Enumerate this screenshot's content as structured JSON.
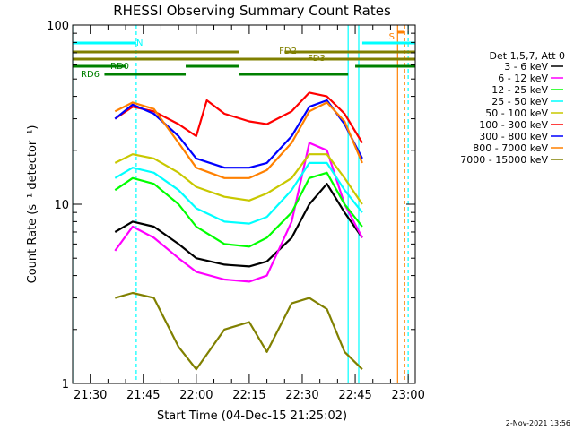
{
  "chart_data": {
    "type": "line",
    "title": "RHESSI Observing Summary Count Rates",
    "xlabel": "Start Time (04-Dec-15 21:25:02)",
    "ylabel": "Count Rate (s⁻¹ detector⁻¹)",
    "yscale": "log",
    "ylim": [
      1,
      100
    ],
    "xlim": [
      "21:25",
      "23:02"
    ],
    "x_ticks": [
      "21:30",
      "21:45",
      "22:00",
      "22:15",
      "22:30",
      "22:45",
      "23:00"
    ],
    "y_ticks": [
      "1",
      "10",
      "100"
    ],
    "grid": false,
    "legend_position": "right",
    "legend_title": "Det 1,5,7, Att 0",
    "footer_timestamp": "2-Nov-2021 13:56",
    "series": [
      {
        "name": "3 - 6 keV",
        "color": "#000000",
        "x": [
          "21:37",
          "21:42",
          "21:48",
          "21:55",
          "22:00",
          "22:08",
          "22:15",
          "22:20",
          "22:27",
          "22:32",
          "22:37",
          "22:42",
          "22:47"
        ],
        "y": [
          7.0,
          8.0,
          7.5,
          6.0,
          5.0,
          4.6,
          4.5,
          4.8,
          6.5,
          10.0,
          13.0,
          9.0,
          6.5
        ]
      },
      {
        "name": "6 - 12 keV",
        "color": "#ff00ff",
        "x": [
          "21:37",
          "21:42",
          "21:48",
          "21:55",
          "22:00",
          "22:08",
          "22:15",
          "22:20",
          "22:27",
          "22:32",
          "22:37",
          "22:42",
          "22:47"
        ],
        "y": [
          5.5,
          7.5,
          6.5,
          5.0,
          4.2,
          3.8,
          3.7,
          4.0,
          8.0,
          22.0,
          20.0,
          10.0,
          6.5
        ]
      },
      {
        "name": "12 - 25 keV",
        "color": "#00ff00",
        "x": [
          "21:37",
          "21:42",
          "21:48",
          "21:55",
          "22:00",
          "22:08",
          "22:15",
          "22:20",
          "22:27",
          "22:32",
          "22:37",
          "22:42",
          "22:47"
        ],
        "y": [
          12.0,
          14.0,
          13.0,
          10.0,
          7.5,
          6.0,
          5.8,
          6.5,
          9.0,
          14.0,
          15.0,
          10.0,
          7.5
        ]
      },
      {
        "name": "25 - 50 keV",
        "color": "#00ffff",
        "x": [
          "21:37",
          "21:42",
          "21:48",
          "21:55",
          "22:00",
          "22:08",
          "22:15",
          "22:20",
          "22:27",
          "22:32",
          "22:37",
          "22:42",
          "22:47"
        ],
        "y": [
          14.0,
          16.0,
          15.0,
          12.0,
          9.5,
          8.0,
          7.8,
          8.5,
          12.0,
          17.0,
          17.0,
          12.0,
          9.0
        ]
      },
      {
        "name": "50 - 100 keV",
        "color": "#c8c800",
        "x": [
          "21:37",
          "21:42",
          "21:48",
          "21:55",
          "22:00",
          "22:08",
          "22:15",
          "22:20",
          "22:27",
          "22:32",
          "22:37",
          "22:42",
          "22:47"
        ],
        "y": [
          17.0,
          19.0,
          18.0,
          15.0,
          12.5,
          11.0,
          10.5,
          11.5,
          14.0,
          19.0,
          19.0,
          14.0,
          10.0
        ]
      },
      {
        "name": "100 - 300 keV",
        "color": "#ff0000",
        "x": [
          "21:37",
          "21:42",
          "21:48",
          "21:55",
          "22:00",
          "22:03",
          "22:08",
          "22:15",
          "22:20",
          "22:27",
          "22:32",
          "22:37",
          "22:42",
          "22:47"
        ],
        "y": [
          30.0,
          35.0,
          33.0,
          28.0,
          24.0,
          38.0,
          32.0,
          29.0,
          28.0,
          33.0,
          42.0,
          40.0,
          32.0,
          22.0
        ]
      },
      {
        "name": "300 - 800 keV",
        "color": "#0000ff",
        "x": [
          "21:37",
          "21:42",
          "21:48",
          "21:55",
          "22:00",
          "22:08",
          "22:15",
          "22:20",
          "22:27",
          "22:32",
          "22:37",
          "22:42",
          "22:47"
        ],
        "y": [
          30.0,
          36.0,
          32.0,
          24.0,
          18.0,
          16.0,
          16.0,
          17.0,
          24.0,
          35.0,
          38.0,
          28.0,
          18.0
        ]
      },
      {
        "name": "800 - 7000 keV",
        "color": "#ff8000",
        "x": [
          "21:37",
          "21:42",
          "21:48",
          "21:55",
          "22:00",
          "22:08",
          "22:15",
          "22:20",
          "22:27",
          "22:32",
          "22:37",
          "22:42",
          "22:47"
        ],
        "y": [
          33.0,
          37.0,
          34.0,
          22.0,
          16.0,
          14.0,
          14.0,
          15.5,
          22.0,
          33.0,
          37.0,
          29.0,
          17.0
        ]
      },
      {
        "name": "7000 - 15000 keV",
        "color": "#808000",
        "x": [
          "21:37",
          "21:42",
          "21:48",
          "21:55",
          "22:00",
          "22:08",
          "22:15",
          "22:20",
          "22:27",
          "22:32",
          "22:37",
          "22:42",
          "22:47"
        ],
        "y": [
          3.0,
          3.2,
          3.0,
          1.6,
          1.2,
          2.0,
          2.2,
          1.5,
          2.8,
          3.0,
          2.6,
          1.5,
          1.2
        ]
      }
    ],
    "flag_bars": [
      {
        "label": "N",
        "color": "#00ffff",
        "segments": [
          [
            "21:25",
            "21:43"
          ],
          [
            "22:47",
            "23:02"
          ]
        ],
        "level": 1
      },
      {
        "label": "S",
        "color": "#ff8000",
        "segments": [
          [
            "22:57",
            "22:59"
          ]
        ],
        "level": 0
      },
      {
        "label": "FD2",
        "color": "#808000",
        "segments": [
          [
            "21:25",
            "22:12"
          ],
          [
            "22:25",
            "23:02"
          ]
        ],
        "level": 2
      },
      {
        "label": "FD3",
        "color": "#808000",
        "segments": [
          [
            "21:25",
            "23:02"
          ]
        ],
        "level": 3
      },
      {
        "label": "RD0",
        "color": "#008000",
        "segments": [
          [
            "21:25",
            "21:40"
          ],
          [
            "21:57",
            "22:12"
          ],
          [
            "22:45",
            "23:02"
          ]
        ],
        "level": 4
      },
      {
        "label": "RD6",
        "color": "#008000",
        "segments": [
          [
            "21:34",
            "21:57"
          ],
          [
            "22:12",
            "22:43"
          ]
        ],
        "level": 5
      }
    ],
    "vertical_markers": [
      {
        "time": "21:25",
        "color": "#00ffff",
        "style": "solid"
      },
      {
        "time": "21:43",
        "color": "#00ffff",
        "style": "dashed"
      },
      {
        "time": "22:43",
        "color": "#00ffff",
        "style": "solid"
      },
      {
        "time": "22:46",
        "color": "#00ffff",
        "style": "solid"
      },
      {
        "time": "22:57",
        "color": "#ff8000",
        "style": "solid"
      },
      {
        "time": "22:59",
        "color": "#ff8000",
        "style": "dashed"
      },
      {
        "time": "23:00",
        "color": "#00ffff",
        "style": "dashed"
      }
    ]
  }
}
